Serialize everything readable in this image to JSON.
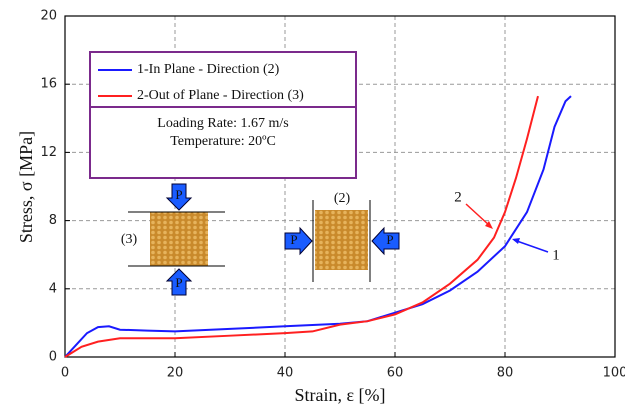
{
  "chart_data": {
    "type": "line",
    "xlabel": "Strain, ε [%]",
    "ylabel": "Stress, σ [MPa]",
    "xlim": [
      0,
      100
    ],
    "ylim": [
      0,
      20
    ],
    "xticks": [
      0,
      20,
      40,
      60,
      80,
      100
    ],
    "yticks": [
      0,
      4,
      8,
      12,
      16,
      20
    ],
    "grid": true,
    "series": [
      {
        "name": "1-In Plane - Direction (2)",
        "color": "#1a1aff",
        "x": [
          0,
          2,
          4,
          6,
          8,
          10,
          15,
          20,
          30,
          40,
          50,
          55,
          60,
          65,
          70,
          75,
          80,
          84,
          87,
          89,
          91,
          92
        ],
        "values": [
          0,
          0.7,
          1.4,
          1.75,
          1.8,
          1.6,
          1.55,
          1.5,
          1.65,
          1.8,
          1.95,
          2.1,
          2.6,
          3.1,
          3.9,
          5.0,
          6.5,
          8.5,
          11,
          13.5,
          15,
          15.3
        ]
      },
      {
        "name": "2-Out of Plane - Direction (3)",
        "color": "#ff2020",
        "x": [
          0,
          3,
          6,
          10,
          20,
          30,
          40,
          45,
          50,
          55,
          60,
          65,
          70,
          75,
          78,
          80,
          82,
          84,
          86
        ],
        "values": [
          0,
          0.6,
          0.9,
          1.1,
          1.1,
          1.25,
          1.4,
          1.5,
          1.9,
          2.1,
          2.5,
          3.2,
          4.3,
          5.7,
          7,
          8.5,
          10.5,
          12.8,
          15.3
        ]
      }
    ],
    "annotations": [
      "Loading Rate: 1.67 m/s",
      "Temperature: 20ºC",
      "1",
      "2",
      "(3)",
      "(2)",
      "P",
      "P",
      "P",
      "P"
    ]
  }
}
